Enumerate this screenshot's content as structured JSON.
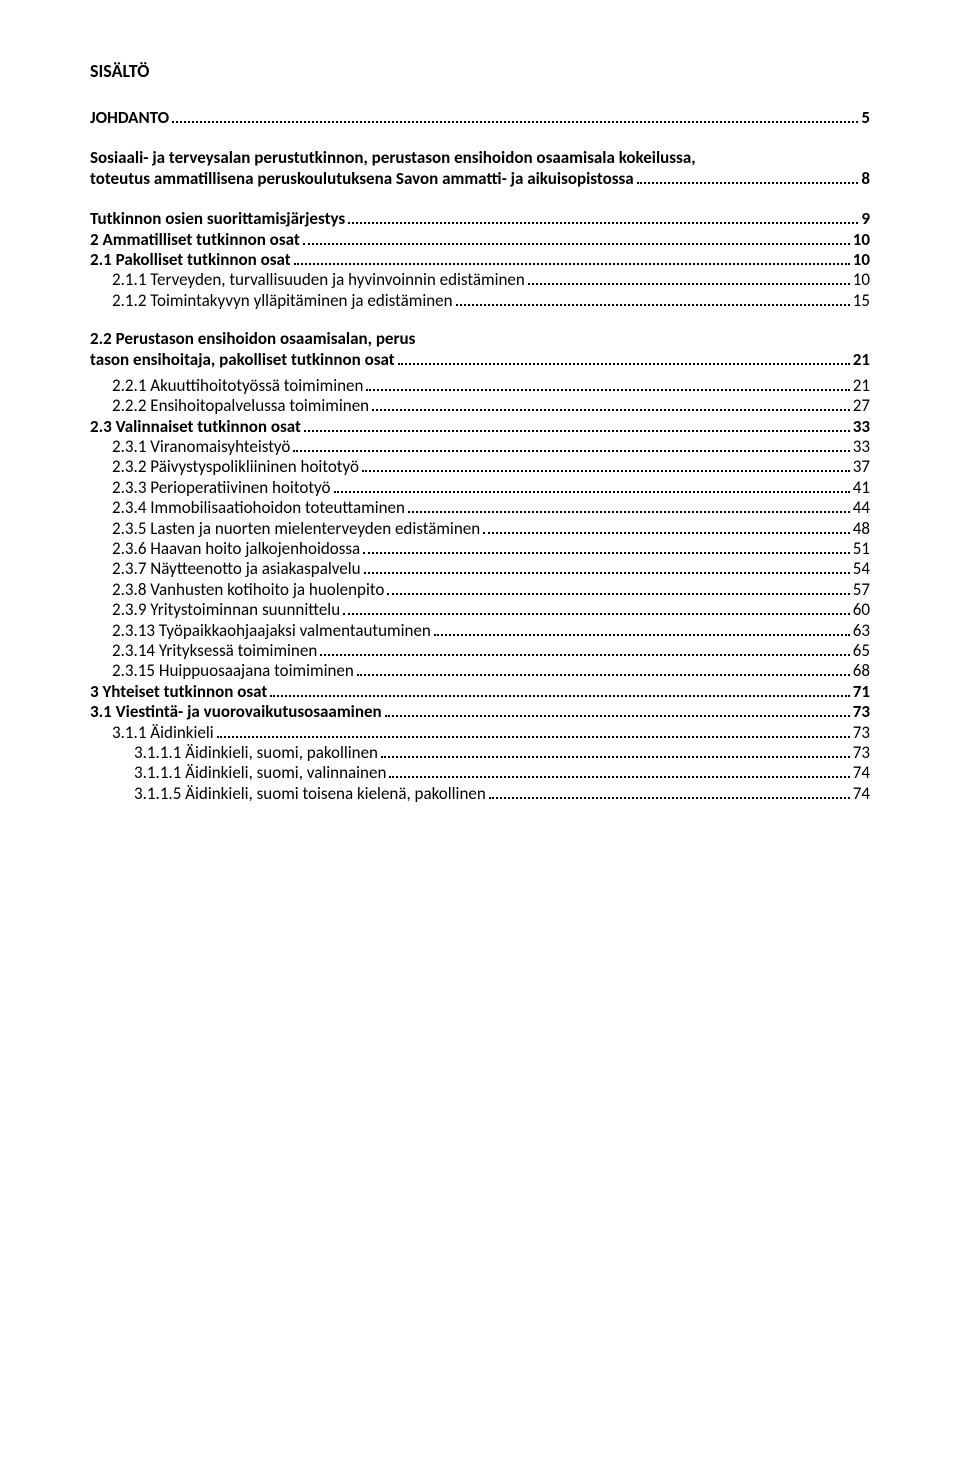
{
  "page_title": "SISÄLTÖ",
  "font": {
    "title_size_pt": 14,
    "body_size_pt": 12
  },
  "colors": {
    "text": "#000000",
    "background": "#ffffff",
    "leader": "#000000"
  },
  "toc": [
    {
      "level": 1,
      "label": "JOHDANTO",
      "page": "5"
    },
    {
      "level": 1,
      "label": "Sosiaali- ja terveysalan perustutkinnon, perustason ensihoidon osaamisala kokeilussa, toteutus ammatillisena peruskoulutuksena Savon ammatti- ja aikuisopistossa",
      "page": "8"
    },
    {
      "level": 1,
      "label": "Tutkinnon osien suorittamisjärjestys",
      "page": "9"
    },
    {
      "level": 1,
      "label": "2 Ammatilliset tutkinnon osat",
      "page": "10"
    },
    {
      "level": 2,
      "label": "2.1 Pakolliset tutkinnon osat",
      "page": "10"
    },
    {
      "level": 3,
      "label": "2.1.1 Terveyden, turvallisuuden ja hyvinvoinnin edistäminen",
      "page": "10"
    },
    {
      "level": 3,
      "label": "2.1.2 Toimintakyvyn ylläpitäminen ja edistäminen",
      "page": "15"
    },
    {
      "level": 2,
      "label": "2.2 Perustason ensihoidon osaamisalan, perustason ensihoitaja, pakolliset tutkinnon osat",
      "page": "21"
    },
    {
      "level": 3,
      "label": "2.2.1 Akuuttihoitotyössä toimiminen",
      "page": "21"
    },
    {
      "level": 3,
      "label": "2.2.2 Ensihoitopalvelussa toimiminen",
      "page": "27"
    },
    {
      "level": 2,
      "label": "2.3 Valinnaiset tutkinnon osat",
      "page": "33"
    },
    {
      "level": 3,
      "label": "2.3.1 Viranomaisyhteistyö",
      "page": "33"
    },
    {
      "level": 3,
      "label": "2.3.2 Päivystyspolikliininen hoitotyö",
      "page": "37"
    },
    {
      "level": 3,
      "label": "2.3.3 Perioperatiivinen hoitotyö",
      "page": "41"
    },
    {
      "level": 3,
      "label": "2.3.4 Immobilisaatiohoidon toteuttaminen",
      "page": "44"
    },
    {
      "level": 3,
      "label": "2.3.5 Lasten ja nuorten mielenterveyden edistäminen",
      "page": "48"
    },
    {
      "level": 3,
      "label": "2.3.6 Haavan hoito jalkojenhoidossa",
      "page": "51"
    },
    {
      "level": 3,
      "label": "2.3.7 Näytteenotto ja asiakaspalvelu",
      "page": "54"
    },
    {
      "level": 3,
      "label": "2.3.8 Vanhusten kotihoito ja huolenpito",
      "page": "57"
    },
    {
      "level": 3,
      "label": "2.3.9 Yritystoiminnan suunnittelu",
      "page": "60"
    },
    {
      "level": 3,
      "label": "2.3.13 Työpaikkaohjaajaksi valmentautuminen",
      "page": "63"
    },
    {
      "level": 3,
      "label": "2.3.14 Yrityksessä toimiminen",
      "page": "65"
    },
    {
      "level": 3,
      "label": "2.3.15 Huippuosaajana toimiminen",
      "page": "68"
    },
    {
      "level": 1,
      "label": "3 Yhteiset tutkinnon osat",
      "page": "71"
    },
    {
      "level": 2,
      "label": "3.1 Viestintä- ja vuorovaikutusosaaminen",
      "page": "73"
    },
    {
      "level": 3,
      "label": "3.1.1 Äidinkieli",
      "page": "73"
    },
    {
      "level": 4,
      "label": "3.1.1.1 Äidinkieli, suomi, pakollinen",
      "page": "73"
    },
    {
      "level": 4,
      "label": "3.1.1.1 Äidinkieli, suomi, valinnainen",
      "page": "74"
    },
    {
      "level": 4,
      "label": "3.1.1.5 Äidinkieli, suomi toisena kielenä, pakollinen",
      "page": "74"
    }
  ]
}
